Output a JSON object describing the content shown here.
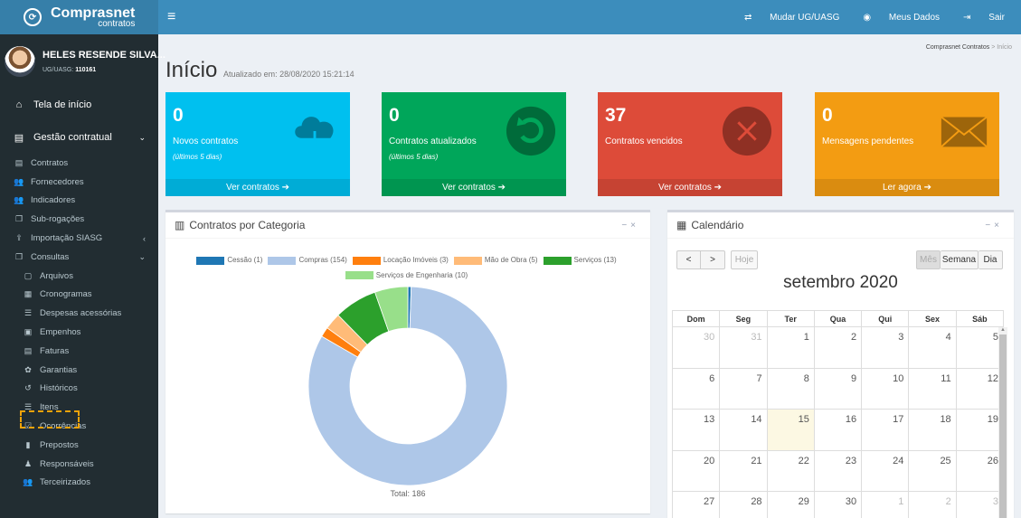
{
  "app": {
    "logo_main": "Comprasnet",
    "logo_sub": "contratos"
  },
  "user": {
    "name": "HELES RESENDE SILVA...",
    "uasg_label": "UG/UASG:",
    "uasg_code": "110161"
  },
  "sidebar": {
    "top_items": [
      {
        "label": "Tela de início",
        "icon": "home-icon"
      },
      {
        "label": "Gestão contratual",
        "icon": "file-icon"
      }
    ],
    "items": [
      {
        "label": "Contratos",
        "icon": "file-text-icon"
      },
      {
        "label": "Fornecedores",
        "icon": "users-icon"
      },
      {
        "label": "Indicadores",
        "icon": "users-icon"
      },
      {
        "label": "Sub-rogações",
        "icon": "copy-icon"
      },
      {
        "label": "Importação SIASG",
        "icon": "upload-icon"
      },
      {
        "label": "Consultas",
        "icon": "copy-icon"
      },
      {
        "label": "Arquivos",
        "icon": "file-o-icon"
      },
      {
        "label": "Cronogramas",
        "icon": "calendar-icon"
      },
      {
        "label": "Despesas acessórias",
        "icon": "list-icon"
      },
      {
        "label": "Empenhos",
        "icon": "money-icon"
      },
      {
        "label": "Faturas",
        "icon": "file-text-icon"
      },
      {
        "label": "Garantias",
        "icon": "gift-icon"
      },
      {
        "label": "Históricos",
        "icon": "history-icon"
      },
      {
        "label": "Itens",
        "icon": "list-ul-icon"
      },
      {
        "label": "Ocorrências",
        "icon": "check-square-icon"
      },
      {
        "label": "Prepostos",
        "icon": "id-card-icon"
      },
      {
        "label": "Responsáveis",
        "icon": "user-secret-icon"
      },
      {
        "label": "Terceirizados",
        "icon": "users-icon"
      }
    ]
  },
  "topbar": {
    "menu_icon": "menu-icon",
    "mudar": "Mudar UG/UASG",
    "meus_dados": "Meus Dados",
    "sair": "Sair"
  },
  "page": {
    "title": "Início",
    "updated": "Atualizado em: 28/08/2020 15:21:14",
    "breadcrumb_1": "Comprasnet Contratos",
    "breadcrumb_sep": ">",
    "breadcrumb_2": "Início"
  },
  "boxes": [
    {
      "value": "0",
      "label": "Novos contratos",
      "sub": "(últimos 5 dias)",
      "link": "Ver contratos",
      "color": "#00c0ef",
      "icon": "cloud-download-icon"
    },
    {
      "value": "0",
      "label": "Contratos atualizados",
      "sub": "(últimos 5 dias)",
      "link": "Ver contratos",
      "color": "#00a65a",
      "icon": "refresh-icon"
    },
    {
      "value": "37",
      "label": "Contratos vencidos",
      "sub": "",
      "link": "Ver contratos",
      "color": "#dd4b39",
      "icon": "times-circle-icon"
    },
    {
      "value": "0",
      "label": "Mensagens pendentes",
      "sub": "",
      "link": "Ler agora",
      "color": "#f39c12",
      "icon": "envelope-icon"
    }
  ],
  "chart_panel": {
    "title": "Contratos por Categoria"
  },
  "chart_data": {
    "type": "pie",
    "categories": [
      "Cessão",
      "Compras",
      "Locação Imóveis",
      "Mão de Obra",
      "Serviços",
      "Serviços de Engenharia"
    ],
    "legend_labels": [
      "Cessão (1)",
      "Compras (154)",
      "Locação Imóveis (3)",
      "Mão de Obra (5)",
      "Serviços (13)",
      "Serviços de Engenharia (10)"
    ],
    "values": [
      1,
      154,
      3,
      5,
      13,
      10
    ],
    "colors": [
      "#1f77b4",
      "#aec7e8",
      "#ff7f0e",
      "#ffbb78",
      "#2ca02c",
      "#98df8a"
    ],
    "total_label": "Total: 186",
    "legend_position": "top"
  },
  "calendar": {
    "title": "Calendário",
    "month": "setembro 2020",
    "prev": "<",
    "next": ">",
    "today": "Hoje",
    "views": [
      "Mês",
      "Semana",
      "Dia"
    ],
    "days": [
      "Dom",
      "Seg",
      "Ter",
      "Qua",
      "Qui",
      "Sex",
      "Sáb"
    ],
    "weeks": [
      [
        "30",
        "31",
        "1",
        "2",
        "3",
        "4",
        "5"
      ],
      [
        "6",
        "7",
        "8",
        "9",
        "10",
        "11",
        "12"
      ],
      [
        "13",
        "14",
        "15",
        "16",
        "17",
        "18",
        "19"
      ],
      [
        "20",
        "21",
        "22",
        "23",
        "24",
        "25",
        "26"
      ],
      [
        "27",
        "28",
        "29",
        "30",
        "1",
        "2",
        "3"
      ]
    ],
    "today_cell": "15"
  }
}
